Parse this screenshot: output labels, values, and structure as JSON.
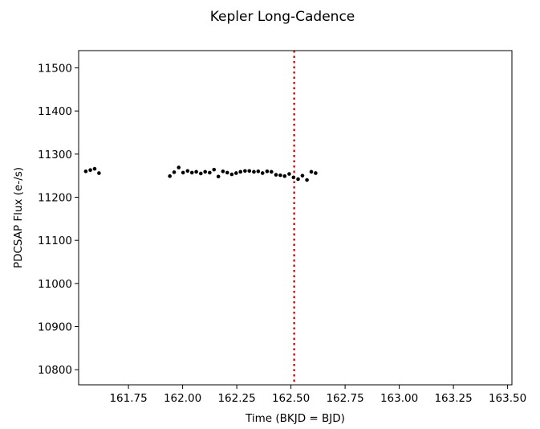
{
  "chart_data": {
    "type": "scatter",
    "title": "Kepler Long-Cadence",
    "xlabel": "Time (BKJD = BJD)",
    "ylabel": "PDCSAP Flux (e-/s)",
    "xlim": [
      161.52,
      163.52
    ],
    "ylim": [
      10765,
      11540
    ],
    "xticks": [
      161.75,
      162.0,
      162.25,
      162.5,
      162.75,
      163.0,
      163.25,
      163.5
    ],
    "xtick_labels": [
      "161.75",
      "162.00",
      "162.25",
      "162.50",
      "162.75",
      "163.00",
      "163.25",
      "163.50"
    ],
    "yticks": [
      10800,
      10900,
      11000,
      11100,
      11200,
      11300,
      11400,
      11500
    ],
    "ytick_labels": [
      "10800",
      "10900",
      "11000",
      "11100",
      "11200",
      "11300",
      "11400",
      "11500"
    ],
    "grid": false,
    "point_color": "#000000",
    "vline": {
      "x": 162.515,
      "color": "#ff0000",
      "style": "dotted"
    },
    "series": [
      {
        "x": [
          161.553,
          161.574,
          161.594,
          161.614,
          161.941,
          161.961,
          161.982,
          162.002,
          162.023,
          162.043,
          162.063,
          162.084,
          162.104,
          162.125,
          162.145,
          162.165,
          162.186,
          162.206,
          162.227,
          162.247,
          162.267,
          162.288,
          162.308,
          162.329,
          162.349,
          162.369,
          162.39,
          162.41,
          162.431,
          162.451,
          162.471,
          162.492,
          162.512,
          162.533,
          162.553,
          162.574,
          162.594,
          162.614
        ],
        "y": [
          11260,
          11263,
          11266,
          11256,
          11249,
          11258,
          11269,
          11257,
          11261,
          11257,
          11259,
          11255,
          11259,
          11257,
          11264,
          11248,
          11260,
          11257,
          11253,
          11256,
          11259,
          11261,
          11261,
          11259,
          11260,
          11256,
          11260,
          11259,
          11252,
          11251,
          11249,
          11254,
          11246,
          11242,
          11250,
          11240,
          11259,
          11256
        ]
      }
    ]
  }
}
